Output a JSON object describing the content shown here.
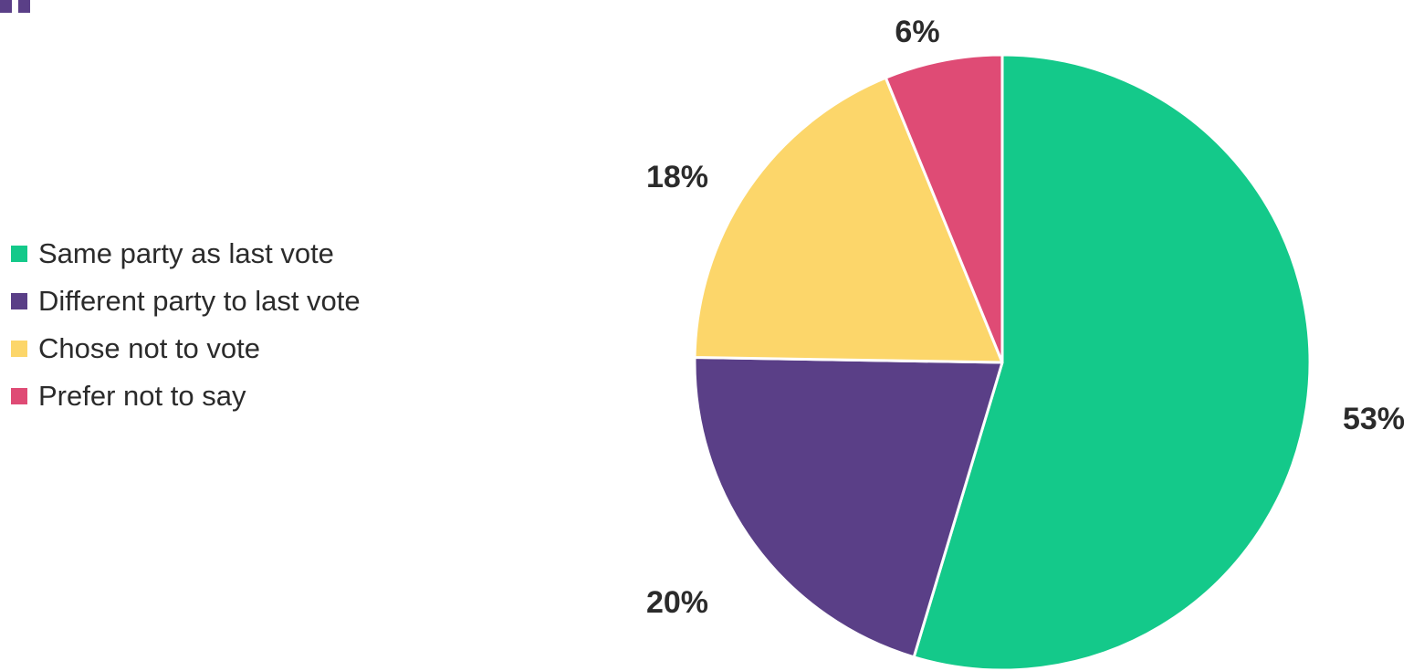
{
  "chart_data": {
    "type": "pie",
    "slices": [
      {
        "label": "Same party as last vote",
        "value": 53,
        "value_label": "53%",
        "color": "#14c98a"
      },
      {
        "label": "Different party to last vote",
        "value": 20,
        "value_label": "20%",
        "color": "#5a3f87"
      },
      {
        "label": "Chose not to vote",
        "value": 18,
        "value_label": "18%",
        "color": "#fcd66a"
      },
      {
        "label": "Prefer not to say",
        "value": 6,
        "value_label": "6%",
        "color": "#df4b75"
      }
    ],
    "start_angle": "12 o'clock",
    "direction": "clockwise",
    "legend_position": "left"
  },
  "decoration": {
    "quote_mark_color": "#5a3f87"
  }
}
